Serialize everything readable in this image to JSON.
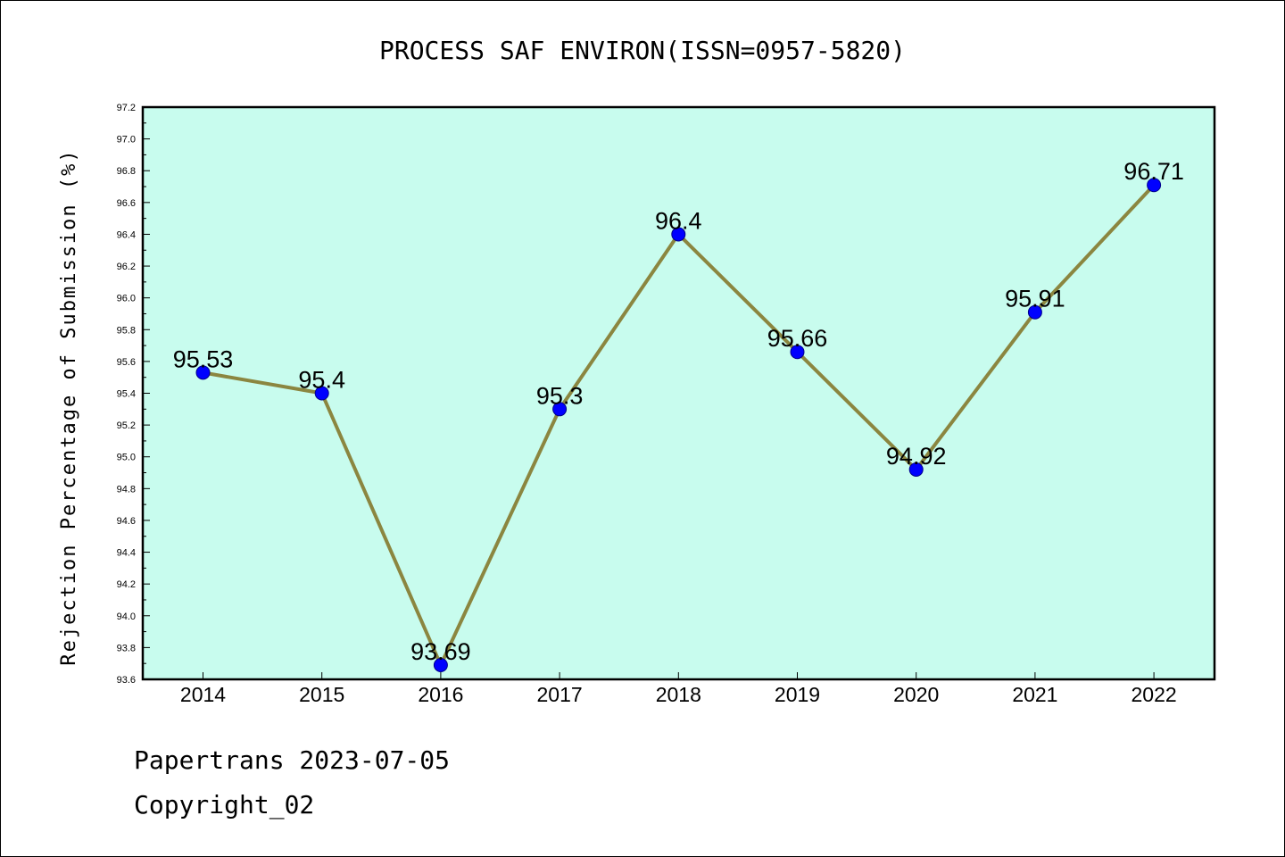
{
  "footer": {
    "line1": "Papertrans 2023-07-05",
    "line2": "Copyright_02"
  },
  "chart_data": {
    "type": "line",
    "title": "PROCESS SAF ENVIRON(ISSN=0957-5820)",
    "ylabel": "Rejection Percentage of Submission (%)",
    "xlabel": "",
    "categories": [
      "2014",
      "2015",
      "2016",
      "2017",
      "2018",
      "2019",
      "2020",
      "2021",
      "2022"
    ],
    "series": [
      {
        "values": [
          95.53,
          95.4,
          93.69,
          95.3,
          96.4,
          95.66,
          94.92,
          95.91,
          96.71
        ],
        "data_labels": [
          "95.53",
          "95.4",
          "93.69",
          "95.3",
          "96.4",
          "95.66",
          "94.92",
          "95.91",
          "96.71"
        ]
      }
    ],
    "ylim": [
      93.6,
      97.2
    ],
    "yticks": [
      "93.6",
      "93.8",
      "94.0",
      "94.2",
      "94.4",
      "94.6",
      "94.8",
      "95.0",
      "95.2",
      "95.4",
      "95.6",
      "95.8",
      "96.0",
      "96.2",
      "96.4",
      "96.6",
      "96.8",
      "97.0",
      "97.2"
    ],
    "grid": false,
    "legend": "none",
    "colors": {
      "plot_background": "#c8fcee",
      "line": "#8b8640",
      "marker": "#0000ff",
      "marker_edge": "#00008b",
      "axes": "#000000"
    }
  }
}
